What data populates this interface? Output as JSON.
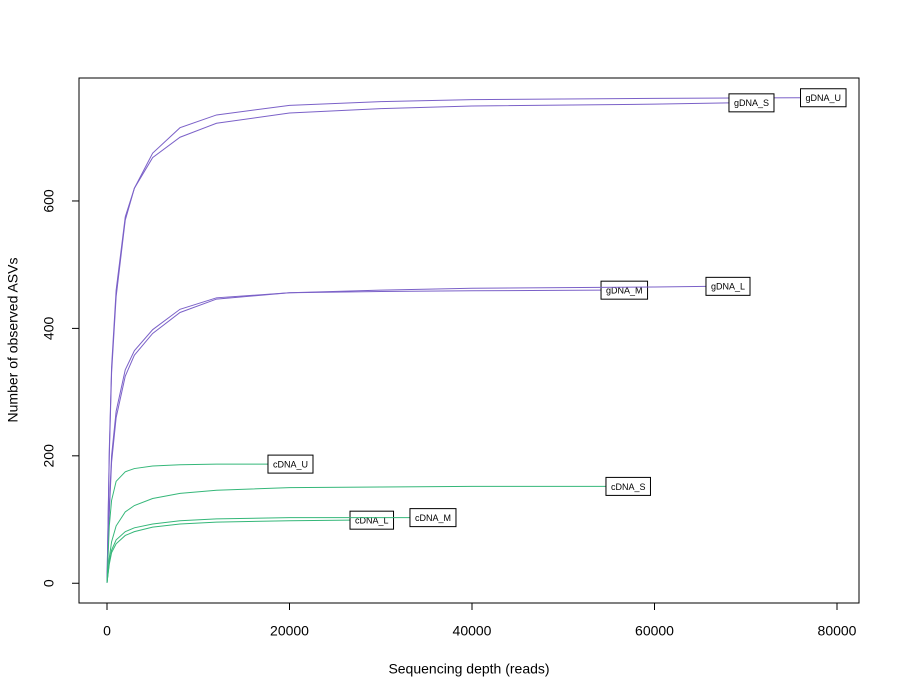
{
  "chart_data": {
    "type": "line",
    "xlabel": "Sequencing depth (reads)",
    "ylabel": "Number of observed ASVs",
    "xlim": [
      -3070,
      82410
    ],
    "ylim": [
      -31,
      793
    ],
    "xticks": [
      0,
      20000,
      40000,
      60000,
      80000
    ],
    "yticks": [
      0,
      200,
      400,
      600
    ],
    "series": [
      {
        "name": "gDNA_U",
        "color": "#7b61c8",
        "x": [
          0,
          250,
          500,
          1000,
          2000,
          3000,
          5000,
          8000,
          12000,
          20000,
          30000,
          40000,
          60000,
          76000
        ],
        "values": [
          1,
          200,
          330,
          450,
          570,
          620,
          675,
          715,
          735,
          750,
          756,
          759,
          761,
          762
        ]
      },
      {
        "name": "gDNA_S",
        "color": "#7b61c8",
        "x": [
          0,
          250,
          500,
          1000,
          2000,
          3000,
          5000,
          8000,
          12000,
          20000,
          30000,
          40000,
          60000,
          68160
        ],
        "values": [
          1,
          210,
          340,
          460,
          575,
          620,
          668,
          700,
          722,
          738,
          745,
          749,
          752,
          754
        ]
      },
      {
        "name": "gDNA_M",
        "color": "#7b61c8",
        "x": [
          0,
          250,
          500,
          1000,
          2000,
          3000,
          5000,
          8000,
          12000,
          20000,
          30000,
          40000,
          54140
        ],
        "values": [
          1,
          120,
          200,
          270,
          335,
          365,
          398,
          430,
          448,
          456,
          458,
          459,
          460
        ]
      },
      {
        "name": "gDNA_L",
        "color": "#7b61c8",
        "x": [
          0,
          250,
          500,
          1000,
          2000,
          3000,
          5000,
          8000,
          12000,
          20000,
          30000,
          40000,
          60000,
          65640
        ],
        "values": [
          1,
          110,
          190,
          260,
          325,
          358,
          392,
          425,
          446,
          456,
          460,
          463,
          465,
          466
        ]
      },
      {
        "name": "cDNA_U",
        "color": "#35b779",
        "x": [
          0,
          250,
          500,
          1000,
          2000,
          3000,
          5000,
          8000,
          12000,
          17640
        ],
        "values": [
          1,
          90,
          130,
          160,
          175,
          180,
          184,
          186,
          187,
          187
        ]
      },
      {
        "name": "cDNA_S",
        "color": "#35b779",
        "x": [
          0,
          250,
          500,
          1000,
          2000,
          3000,
          5000,
          8000,
          12000,
          20000,
          30000,
          40000,
          54680
        ],
        "values": [
          1,
          40,
          65,
          90,
          112,
          122,
          133,
          141,
          146,
          150,
          151,
          152,
          152
        ]
      },
      {
        "name": "cDNA_L",
        "color": "#35b779",
        "x": [
          0,
          250,
          500,
          1000,
          2000,
          3000,
          5000,
          8000,
          12000,
          20000,
          26630
        ],
        "values": [
          1,
          30,
          48,
          62,
          75,
          81,
          88,
          93,
          96,
          98,
          99
        ]
      },
      {
        "name": "cDNA_M",
        "color": "#35b779",
        "x": [
          0,
          250,
          500,
          1000,
          2000,
          3000,
          5000,
          8000,
          12000,
          20000,
          30000,
          33200
        ],
        "values": [
          1,
          33,
          52,
          68,
          81,
          87,
          93,
          98,
          101,
          103,
          103,
          103
        ]
      }
    ]
  }
}
